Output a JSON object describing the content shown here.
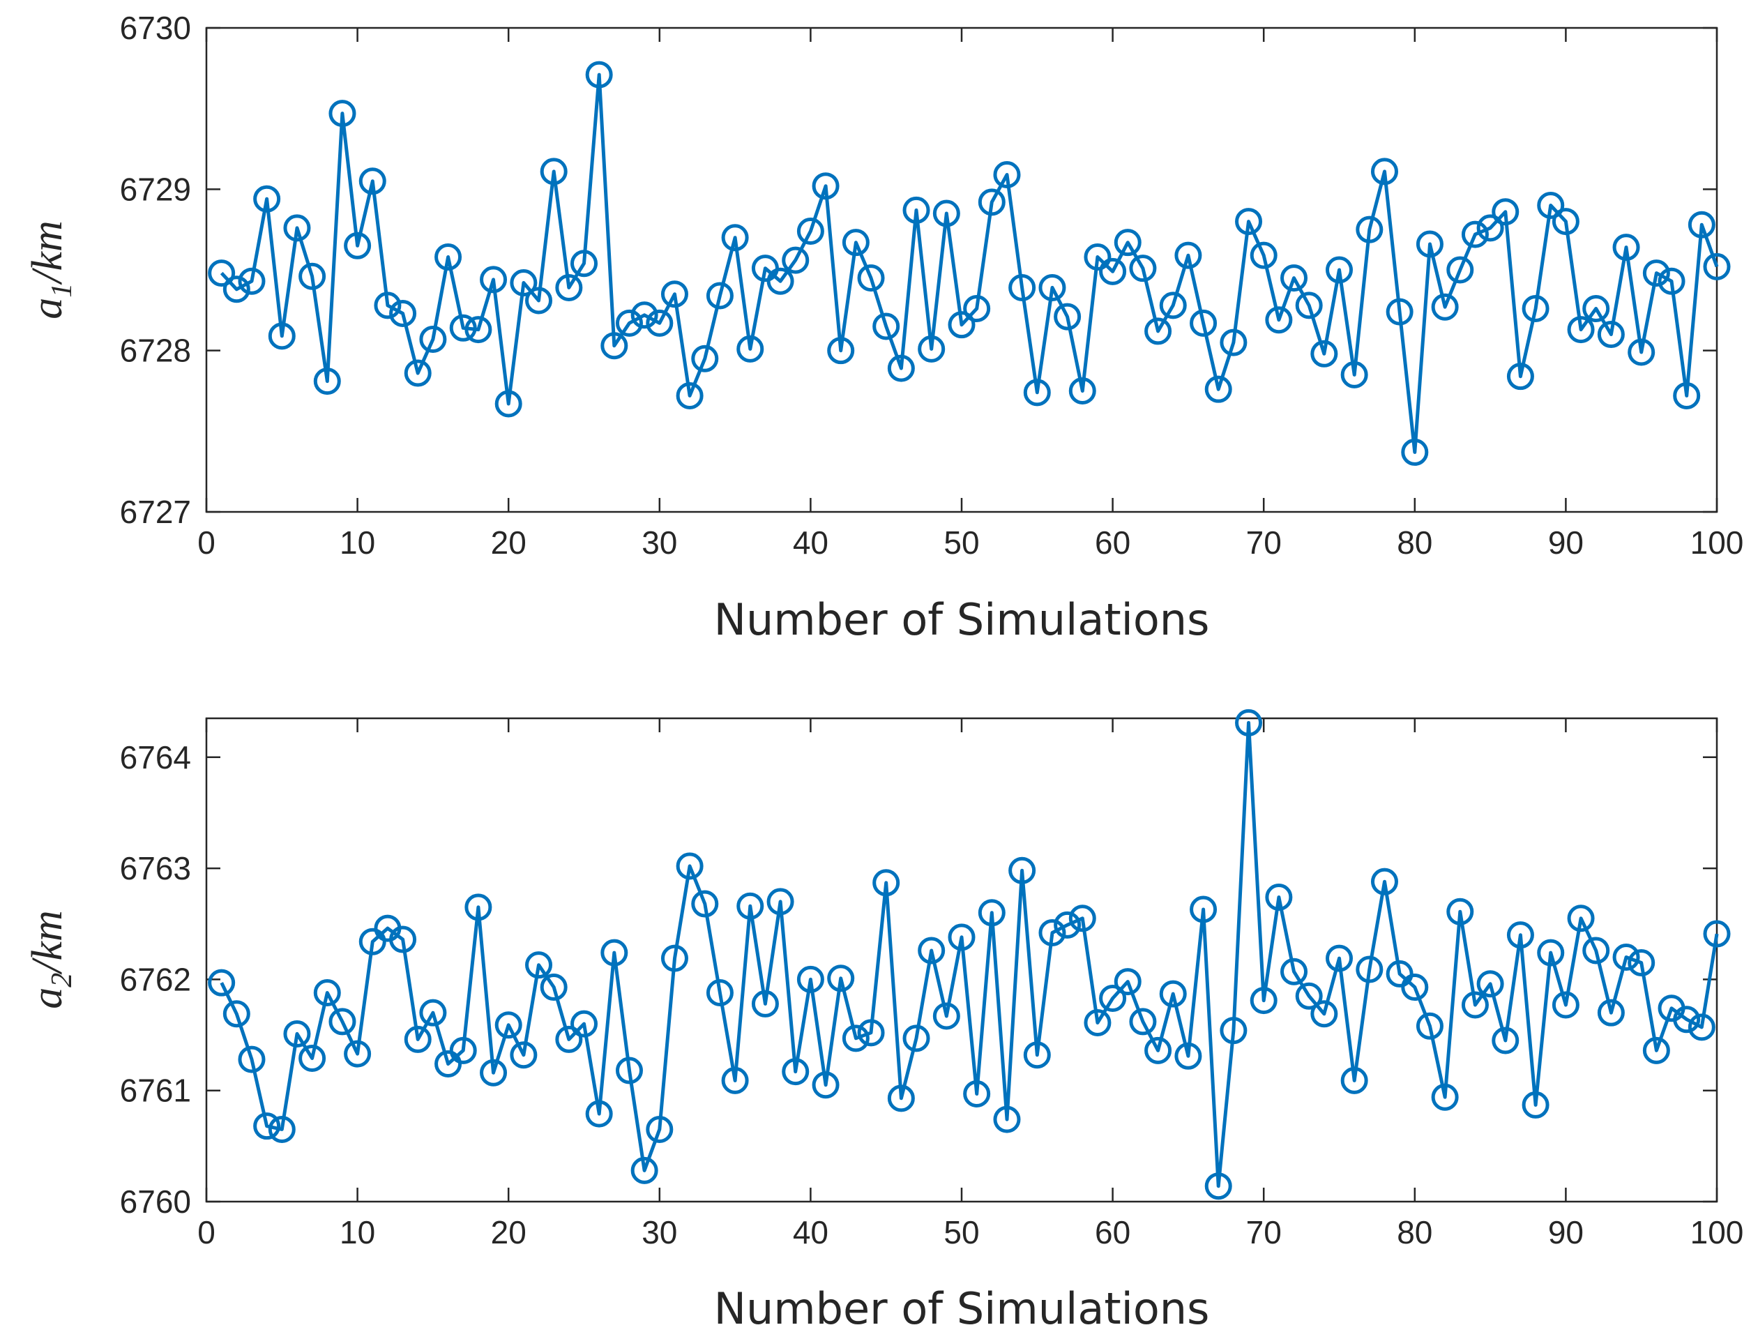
{
  "chart_data": [
    {
      "type": "line",
      "title": "",
      "xlabel": "Number of Simulations",
      "ylabel": {
        "main": "a",
        "sub": "1",
        "unit": "/km"
      },
      "xlim": [
        0,
        100
      ],
      "ylim": [
        6727,
        6730
      ],
      "xticks": [
        0,
        10,
        20,
        30,
        40,
        50,
        60,
        70,
        80,
        90,
        100
      ],
      "yticks": [
        6727,
        6728,
        6729,
        6730
      ],
      "color": "#0072BD",
      "marker": "circle",
      "x": [
        1,
        2,
        3,
        4,
        5,
        6,
        7,
        8,
        9,
        10,
        11,
        12,
        13,
        14,
        15,
        16,
        17,
        18,
        19,
        20,
        21,
        22,
        23,
        24,
        25,
        26,
        27,
        28,
        29,
        30,
        31,
        32,
        33,
        34,
        35,
        36,
        37,
        38,
        39,
        40,
        41,
        42,
        43,
        44,
        45,
        46,
        47,
        48,
        49,
        50,
        51,
        52,
        53,
        54,
        55,
        56,
        57,
        58,
        59,
        60,
        61,
        62,
        63,
        64,
        65,
        66,
        67,
        68,
        69,
        70,
        71,
        72,
        73,
        74,
        75,
        76,
        77,
        78,
        79,
        80,
        81,
        82,
        83,
        84,
        85,
        86,
        87,
        88,
        89,
        90,
        91,
        92,
        93,
        94,
        95,
        96,
        97,
        98,
        99,
        100
      ],
      "values": [
        6728.48,
        6728.38,
        6728.43,
        6728.94,
        6728.09,
        6728.76,
        6728.46,
        6727.81,
        6729.47,
        6728.65,
        6729.05,
        6728.28,
        6728.23,
        6727.86,
        6728.07,
        6728.58,
        6728.14,
        6728.13,
        6728.44,
        6727.67,
        6728.42,
        6728.31,
        6729.11,
        6728.39,
        6728.54,
        6729.71,
        6728.03,
        6728.17,
        6728.22,
        6728.17,
        6728.35,
        6727.72,
        6727.95,
        6728.34,
        6728.7,
        6728.01,
        6728.51,
        6728.43,
        6728.56,
        6728.74,
        6729.02,
        6728.0,
        6728.67,
        6728.45,
        6728.15,
        6727.89,
        6728.87,
        6728.01,
        6728.85,
        6728.16,
        6728.26,
        6728.92,
        6729.09,
        6728.39,
        6727.74,
        6728.39,
        6728.21,
        6727.75,
        6728.58,
        6728.49,
        6728.67,
        6728.51,
        6728.12,
        6728.28,
        6728.59,
        6728.17,
        6727.76,
        6728.05,
        6728.8,
        6728.59,
        6728.19,
        6728.45,
        6728.28,
        6727.98,
        6728.5,
        6727.85,
        6728.75,
        6729.11,
        6728.24,
        6727.37,
        6728.66,
        6728.27,
        6728.5,
        6728.72,
        6728.76,
        6728.86,
        6727.84,
        6728.26,
        6728.9,
        6728.8,
        6728.13,
        6728.26,
        6728.1,
        6728.64,
        6727.99,
        6728.48,
        6728.43,
        6727.72,
        6728.78,
        6728.52
      ]
    },
    {
      "type": "line",
      "title": "",
      "xlabel": "Number of Simulations",
      "ylabel": {
        "main": "a",
        "sub": "2",
        "unit": "/km"
      },
      "xlim": [
        0,
        100
      ],
      "ylim": [
        6760,
        6764.35
      ],
      "xticks": [
        0,
        10,
        20,
        30,
        40,
        50,
        60,
        70,
        80,
        90,
        100
      ],
      "yticks": [
        6760,
        6761,
        6762,
        6763,
        6764
      ],
      "color": "#0072BD",
      "marker": "circle",
      "x": [
        1,
        2,
        3,
        4,
        5,
        6,
        7,
        8,
        9,
        10,
        11,
        12,
        13,
        14,
        15,
        16,
        17,
        18,
        19,
        20,
        21,
        22,
        23,
        24,
        25,
        26,
        27,
        28,
        29,
        30,
        31,
        32,
        33,
        34,
        35,
        36,
        37,
        38,
        39,
        40,
        41,
        42,
        43,
        44,
        45,
        46,
        47,
        48,
        49,
        50,
        51,
        52,
        53,
        54,
        55,
        56,
        57,
        58,
        59,
        60,
        61,
        62,
        63,
        64,
        65,
        66,
        67,
        68,
        69,
        70,
        71,
        72,
        73,
        74,
        75,
        76,
        77,
        78,
        79,
        80,
        81,
        82,
        83,
        84,
        85,
        86,
        87,
        88,
        89,
        90,
        91,
        92,
        93,
        94,
        95,
        96,
        97,
        98,
        99,
        100
      ],
      "values": [
        6761.97,
        6761.69,
        6761.28,
        6760.68,
        6760.65,
        6761.51,
        6761.29,
        6761.88,
        6761.62,
        6761.33,
        6762.34,
        6762.46,
        6762.36,
        6761.46,
        6761.7,
        6761.24,
        6761.36,
        6762.65,
        6761.16,
        6761.59,
        6761.32,
        6762.13,
        6761.93,
        6761.46,
        6761.6,
        6760.79,
        6762.24,
        6761.18,
        6760.28,
        6760.65,
        6762.19,
        6763.02,
        6762.68,
        6761.88,
        6761.09,
        6762.66,
        6761.78,
        6762.7,
        6761.17,
        6762.0,
        6761.05,
        6762.01,
        6761.47,
        6761.52,
        6762.87,
        6760.93,
        6761.47,
        6762.26,
        6761.67,
        6762.38,
        6760.97,
        6762.6,
        6760.74,
        6762.98,
        6761.32,
        6762.42,
        6762.49,
        6762.55,
        6761.61,
        6761.83,
        6761.98,
        6761.62,
        6761.36,
        6761.87,
        6761.31,
        6762.63,
        6760.14,
        6761.54,
        6764.31,
        6761.81,
        6762.74,
        6762.07,
        6761.85,
        6761.69,
        6762.19,
        6761.09,
        6762.09,
        6762.88,
        6762.05,
        6761.93,
        6761.58,
        6760.94,
        6762.61,
        6761.77,
        6761.96,
        6761.45,
        6762.4,
        6760.87,
        6762.24,
        6761.77,
        6762.55,
        6762.26,
        6761.7,
        6762.2,
        6762.15,
        6761.36,
        6761.74,
        6761.64,
        6761.57,
        6762.41
      ]
    }
  ]
}
